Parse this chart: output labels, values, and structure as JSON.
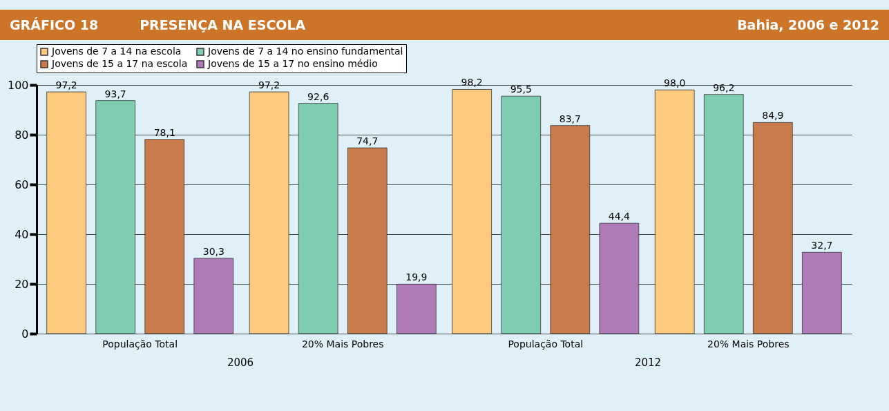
{
  "chart_data": {
    "type": "bar",
    "title": "PRESENÇA NA ESCOLA",
    "subtitle": "Bahia, 2006 e 2012",
    "annotations": [
      "GRÁFICO 18",
      "2006",
      "2012"
    ],
    "categories": [
      "População Total",
      "20% Mais Pobres",
      "População Total",
      "20% Mais Pobres"
    ],
    "series": [
      {
        "name": "Jovens de 7 a 14 na escola",
        "color": "#fecb7e",
        "values": [
          97.2,
          97.2,
          98.2,
          98.0
        ],
        "value_labels": [
          "97,2",
          "97,2",
          "98,2",
          "98,0"
        ]
      },
      {
        "name": "Jovens de 7 a 14 no ensino fundamental",
        "color": "#7fcdb0",
        "values": [
          93.7,
          92.6,
          95.5,
          96.2
        ],
        "value_labels": [
          "93,7",
          "92,6",
          "95,5",
          "96,2"
        ]
      },
      {
        "name": "Jovens de 15 a 17 na escola",
        "color": "#c97b4b",
        "values": [
          78.1,
          74.7,
          83.7,
          84.9
        ],
        "value_labels": [
          "78,1",
          "74,7",
          "83,7",
          "84,9"
        ]
      },
      {
        "name": "Jovens de 15 a 17 no ensino médio",
        "color": "#b07ab8",
        "values": [
          30.3,
          19.9,
          44.4,
          32.7
        ],
        "value_labels": [
          "30,3",
          "19,9",
          "44,4",
          "32,7"
        ]
      }
    ],
    "ylim": [
      0,
      100
    ],
    "yticks": [
      0,
      20,
      40,
      60,
      80,
      100
    ],
    "grid": "y",
    "legend": "top"
  }
}
